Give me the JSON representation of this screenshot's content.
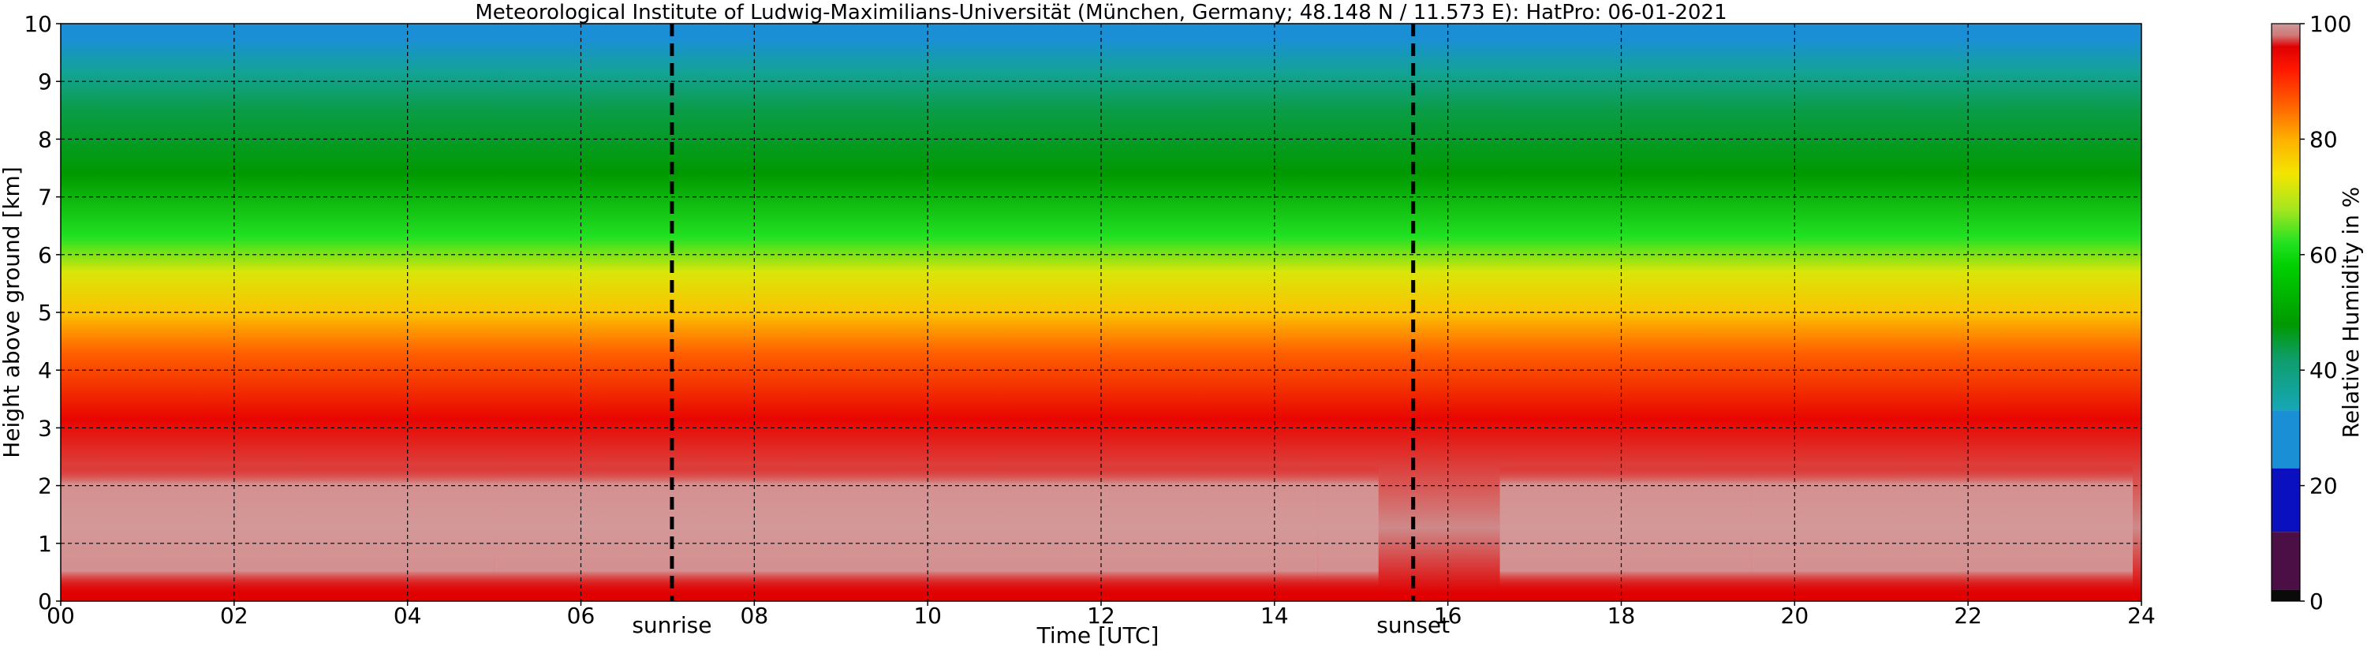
{
  "chart_data": {
    "type": "heatmap",
    "title": "Meteorological Institute of Ludwig-Maximilians-Universität (München, Germany; 48.148 N / 11.573 E):    HatPro: 06-01-2021",
    "xlabel": "Time [UTC]",
    "ylabel": "Height above ground [km]",
    "xlim": [
      0,
      24
    ],
    "ylim": [
      0,
      10
    ],
    "x_ticks": [
      "00",
      "02",
      "04",
      "06",
      "08",
      "10",
      "12",
      "14",
      "16",
      "18",
      "20",
      "22",
      "24"
    ],
    "y_ticks": [
      "0",
      "1",
      "2",
      "3",
      "4",
      "5",
      "6",
      "7",
      "8",
      "9",
      "10"
    ],
    "grid": true,
    "events": [
      {
        "label": "sunrise",
        "time": 7.05
      },
      {
        "label": "sunset",
        "time": 15.6
      }
    ],
    "colorbar": {
      "label": "Relative Humidity in %",
      "range": [
        0,
        100
      ],
      "ticks": [
        "0",
        "20",
        "40",
        "60",
        "80",
        "100"
      ],
      "segments": [
        {
          "from": 0,
          "to": 2,
          "color": "#0a0a0a"
        },
        {
          "from": 2,
          "to": 12,
          "color": "#4b0f46"
        },
        {
          "from": 12,
          "to": 23,
          "color": "#0a10c0"
        },
        {
          "from": 23,
          "to": 33,
          "color": "#1a8fd6"
        }
      ],
      "gradient": [
        {
          "value": 33,
          "color": "#16a7b8"
        },
        {
          "value": 42,
          "color": "#0f9e6a"
        },
        {
          "value": 48,
          "color": "#009900"
        },
        {
          "value": 58,
          "color": "#00d000"
        },
        {
          "value": 62,
          "color": "#22e222"
        },
        {
          "value": 68,
          "color": "#a8e61e"
        },
        {
          "value": 74,
          "color": "#f2e600"
        },
        {
          "value": 80,
          "color": "#ffb000"
        },
        {
          "value": 86,
          "color": "#ff6000"
        },
        {
          "value": 92,
          "color": "#ff1800"
        },
        {
          "value": 96,
          "color": "#e00000"
        },
        {
          "value": 98,
          "color": "#d07878"
        },
        {
          "value": 100,
          "color": "#cc9999"
        }
      ]
    },
    "profile_bands": [
      {
        "from_km": 0.0,
        "to_km": 0.25,
        "rh": 96
      },
      {
        "from_km": 0.25,
        "to_km": 2.3,
        "rh": 99
      },
      {
        "from_km": 2.3,
        "to_km": 4.0,
        "rh": 95
      },
      {
        "from_km": 4.0,
        "to_km": 4.6,
        "rh": 86
      },
      {
        "from_km": 4.6,
        "to_km": 5.4,
        "rh": 78
      },
      {
        "from_km": 5.4,
        "to_km": 6.0,
        "rh": 72
      },
      {
        "from_km": 6.0,
        "to_km": 6.6,
        "rh": 62
      },
      {
        "from_km": 6.6,
        "to_km": 8.2,
        "rh": 48
      },
      {
        "from_km": 8.2,
        "to_km": 8.8,
        "rh": 44
      },
      {
        "from_km": 8.8,
        "to_km": 9.5,
        "rh": 37
      },
      {
        "from_km": 9.5,
        "to_km": 10.0,
        "rh": 30
      }
    ],
    "saturated_periods": [
      {
        "from_h": 0.0,
        "to_h": 5.0
      },
      {
        "from_h": 5.0,
        "to_h": 8.0
      },
      {
        "from_h": 8.0,
        "to_h": 12.0
      },
      {
        "from_h": 12.0,
        "to_h": 14.5
      },
      {
        "from_h": 14.5,
        "to_h": 15.2
      },
      {
        "from_h": 16.6,
        "to_h": 19.5
      },
      {
        "from_h": 19.5,
        "to_h": 23.9
      }
    ]
  }
}
